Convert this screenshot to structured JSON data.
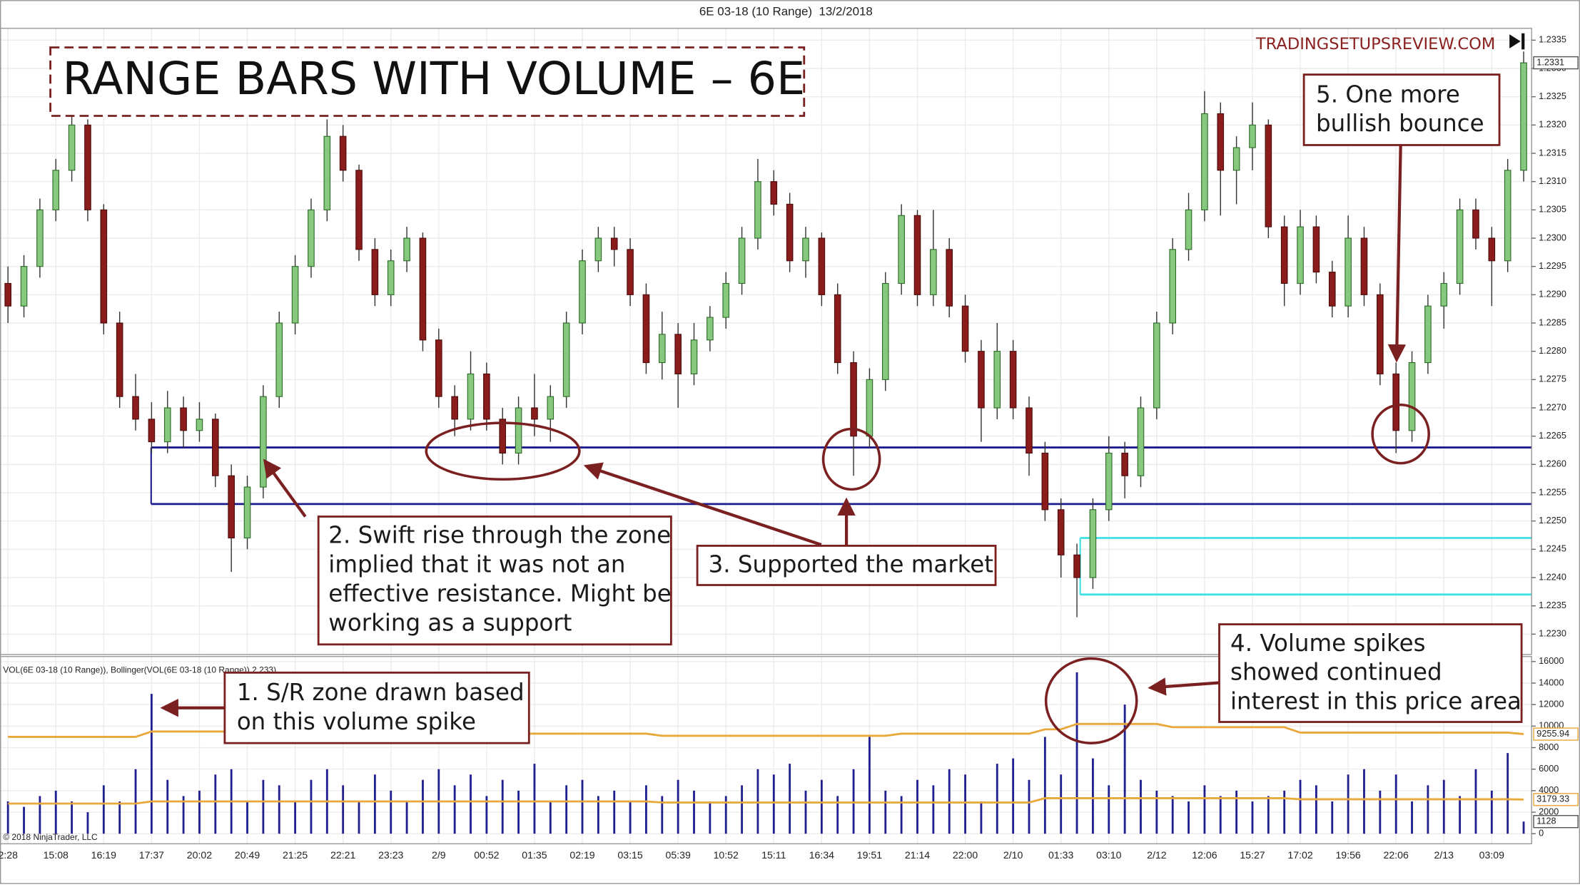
{
  "chart_data": {
    "type": "candlestick",
    "header": "6E 03-18 (10 Range)  13/2/2018",
    "title": "RANGE BARS WITH VOLUME – 6E",
    "watermark": "TRADINGSETUPSREVIEW.COM",
    "copyright": "© 2018 NinjaTrader, LLC",
    "up_color": "#86c97e",
    "down_color": "#8b1c1c",
    "grid": true,
    "categories": [
      "2:28",
      null,
      null,
      "15:08",
      null,
      null,
      "16:19",
      null,
      null,
      "17:37",
      null,
      null,
      "20:02",
      null,
      null,
      "20:49",
      null,
      null,
      "21:25",
      null,
      null,
      "22:21",
      null,
      null,
      "23:23",
      null,
      null,
      "2/9",
      null,
      null,
      "00:52",
      null,
      null,
      "01:35",
      null,
      null,
      "02:19",
      null,
      null,
      "03:15",
      null,
      null,
      "05:39",
      null,
      null,
      "10:52",
      null,
      null,
      "15:11",
      null,
      null,
      "16:34",
      null,
      null,
      "19:51",
      null,
      null,
      "21:14",
      null,
      null,
      "22:00",
      null,
      null,
      "2/10",
      null,
      null,
      "01:33",
      null,
      null,
      "03:10",
      null,
      null,
      "2/12",
      null,
      null,
      "12:06",
      null,
      null,
      "15:27",
      null,
      null,
      "17:02",
      null,
      null,
      "19:56",
      null,
      null,
      "22:06",
      null,
      null,
      "2/13",
      null,
      null,
      "03:09",
      null,
      null
    ],
    "candles": [
      [
        1.2292,
        1.2295,
        1.2285,
        1.2288
      ],
      [
        1.2288,
        1.2297,
        1.2286,
        1.2295
      ],
      [
        1.2295,
        1.2307,
        1.2293,
        1.2305
      ],
      [
        1.2305,
        1.2314,
        1.2303,
        1.2312
      ],
      [
        1.2312,
        1.2322,
        1.231,
        1.232
      ],
      [
        1.232,
        1.2321,
        1.2303,
        1.2305
      ],
      [
        1.2305,
        1.2306,
        1.2283,
        1.2285
      ],
      [
        1.2285,
        1.2287,
        1.227,
        1.2272
      ],
      [
        1.2272,
        1.2276,
        1.2266,
        1.2268
      ],
      [
        1.2268,
        1.2271,
        1.2262,
        1.2264
      ],
      [
        1.2264,
        1.2273,
        1.2262,
        1.227
      ],
      [
        1.227,
        1.2272,
        1.2263,
        1.2266
      ],
      [
        1.2266,
        1.2271,
        1.2264,
        1.2268
      ],
      [
        1.2268,
        1.2269,
        1.2256,
        1.2258
      ],
      [
        1.2258,
        1.226,
        1.2241,
        1.2247
      ],
      [
        1.2247,
        1.2258,
        1.2245,
        1.2256
      ],
      [
        1.2256,
        1.2274,
        1.2254,
        1.2272
      ],
      [
        1.2272,
        1.2287,
        1.227,
        1.2285
      ],
      [
        1.2285,
        1.2297,
        1.2283,
        1.2295
      ],
      [
        1.2295,
        1.2307,
        1.2293,
        1.2305
      ],
      [
        1.2305,
        1.2321,
        1.2303,
        1.2318
      ],
      [
        1.2318,
        1.232,
        1.231,
        1.2312
      ],
      [
        1.2312,
        1.2313,
        1.2296,
        1.2298
      ],
      [
        1.2298,
        1.23,
        1.2288,
        1.229
      ],
      [
        1.229,
        1.2298,
        1.2288,
        1.2296
      ],
      [
        1.2296,
        1.2302,
        1.2294,
        1.23
      ],
      [
        1.23,
        1.2301,
        1.228,
        1.2282
      ],
      [
        1.2282,
        1.2284,
        1.227,
        1.2272
      ],
      [
        1.2272,
        1.2274,
        1.2265,
        1.2268
      ],
      [
        1.2268,
        1.228,
        1.2266,
        1.2276
      ],
      [
        1.2276,
        1.2278,
        1.2266,
        1.2268
      ],
      [
        1.2268,
        1.227,
        1.226,
        1.2262
      ],
      [
        1.2262,
        1.2272,
        1.226,
        1.227
      ],
      [
        1.227,
        1.2276,
        1.2265,
        1.2268
      ],
      [
        1.2268,
        1.2274,
        1.2264,
        1.2272
      ],
      [
        1.2272,
        1.2287,
        1.227,
        1.2285
      ],
      [
        1.2285,
        1.2298,
        1.2283,
        1.2296
      ],
      [
        1.2296,
        1.2302,
        1.2294,
        1.23
      ],
      [
        1.23,
        1.2302,
        1.2295,
        1.2298
      ],
      [
        1.2298,
        1.23,
        1.2288,
        1.229
      ],
      [
        1.229,
        1.2292,
        1.2276,
        1.2278
      ],
      [
        1.2278,
        1.2287,
        1.2275,
        1.2283
      ],
      [
        1.2283,
        1.2285,
        1.227,
        1.2276
      ],
      [
        1.2276,
        1.2285,
        1.2274,
        1.2282
      ],
      [
        1.2282,
        1.2288,
        1.228,
        1.2286
      ],
      [
        1.2286,
        1.2294,
        1.2284,
        1.2292
      ],
      [
        1.2292,
        1.2302,
        1.229,
        1.23
      ],
      [
        1.23,
        1.2314,
        1.2298,
        1.231
      ],
      [
        1.231,
        1.2312,
        1.2304,
        1.2306
      ],
      [
        1.2306,
        1.2308,
        1.2294,
        1.2296
      ],
      [
        1.2296,
        1.2302,
        1.2293,
        1.23
      ],
      [
        1.23,
        1.2301,
        1.2288,
        1.229
      ],
      [
        1.229,
        1.2292,
        1.2276,
        1.2278
      ],
      [
        1.2278,
        1.228,
        1.2258,
        1.2265
      ],
      [
        1.2265,
        1.2277,
        1.2263,
        1.2275
      ],
      [
        1.2275,
        1.2294,
        1.2273,
        1.2292
      ],
      [
        1.2292,
        1.2306,
        1.229,
        1.2304
      ],
      [
        1.2304,
        1.2305,
        1.2288,
        1.229
      ],
      [
        1.229,
        1.2305,
        1.2288,
        1.2298
      ],
      [
        1.2298,
        1.23,
        1.2286,
        1.2288
      ],
      [
        1.2288,
        1.229,
        1.2278,
        1.228
      ],
      [
        1.228,
        1.2282,
        1.2264,
        1.227
      ],
      [
        1.227,
        1.2285,
        1.2268,
        1.228
      ],
      [
        1.228,
        1.2282,
        1.2268,
        1.227
      ],
      [
        1.227,
        1.2272,
        1.2258,
        1.2262
      ],
      [
        1.2262,
        1.2264,
        1.225,
        1.2252
      ],
      [
        1.2252,
        1.2254,
        1.224,
        1.2244
      ],
      [
        1.2244,
        1.2246,
        1.2233,
        1.224
      ],
      [
        1.224,
        1.2254,
        1.2238,
        1.2252
      ],
      [
        1.2252,
        1.2265,
        1.225,
        1.2262
      ],
      [
        1.2262,
        1.2264,
        1.2254,
        1.2258
      ],
      [
        1.2258,
        1.2272,
        1.2256,
        1.227
      ],
      [
        1.227,
        1.2287,
        1.2268,
        1.2285
      ],
      [
        1.2285,
        1.23,
        1.2283,
        1.2298
      ],
      [
        1.2298,
        1.2308,
        1.2296,
        1.2305
      ],
      [
        1.2305,
        1.2326,
        1.2303,
        1.2322
      ],
      [
        1.2322,
        1.2324,
        1.2304,
        1.2312
      ],
      [
        1.2312,
        1.2318,
        1.2306,
        1.2316
      ],
      [
        1.2316,
        1.2324,
        1.2312,
        1.232
      ],
      [
        1.232,
        1.2321,
        1.23,
        1.2302
      ],
      [
        1.2302,
        1.2304,
        1.2288,
        1.2292
      ],
      [
        1.2292,
        1.2305,
        1.229,
        1.2302
      ],
      [
        1.2302,
        1.2304,
        1.2292,
        1.2294
      ],
      [
        1.2294,
        1.2296,
        1.2286,
        1.2288
      ],
      [
        1.2288,
        1.2304,
        1.2286,
        1.23
      ],
      [
        1.23,
        1.2302,
        1.2288,
        1.229
      ],
      [
        1.229,
        1.2292,
        1.2274,
        1.2276
      ],
      [
        1.2276,
        1.2278,
        1.2262,
        1.2266
      ],
      [
        1.2266,
        1.228,
        1.2264,
        1.2278
      ],
      [
        1.2278,
        1.229,
        1.2276,
        1.2288
      ],
      [
        1.2288,
        1.2294,
        1.2284,
        1.2292
      ],
      [
        1.2292,
        1.2307,
        1.229,
        1.2305
      ],
      [
        1.2305,
        1.2307,
        1.2298,
        1.23
      ],
      [
        1.23,
        1.2302,
        1.2288,
        1.2296
      ],
      [
        1.2296,
        1.2314,
        1.2294,
        1.2312
      ],
      [
        1.2312,
        1.2333,
        1.231,
        1.2331
      ]
    ],
    "ylim": [
      1.22264,
      1.23371
    ],
    "yticks": [
      {
        "value": 1.223,
        "label": "1.2230"
      },
      1.2235,
      {
        "value": 1.224,
        "label": "1.2240"
      },
      1.2245,
      {
        "value": 1.225,
        "label": "1.2250"
      },
      1.2255,
      {
        "value": 1.226,
        "label": "1.2260"
      },
      1.2265,
      {
        "value": 1.227,
        "label": "1.2270"
      },
      1.2275,
      {
        "value": 1.228,
        "label": "1.2280"
      },
      1.2285,
      {
        "value": 1.229,
        "label": "1.2290"
      },
      1.2295,
      {
        "value": 1.23,
        "label": "1.2300"
      },
      1.2305,
      {
        "value": 1.231,
        "label": "1.2310"
      },
      1.2315,
      {
        "value": 1.232,
        "label": "1.2320"
      },
      1.2325,
      {
        "value": 1.233,
        "label": "1.2330"
      },
      1.2335
    ],
    "levels": [
      {
        "value": 1.2263,
        "color": "#1c1c8c"
      },
      {
        "value": 1.2253,
        "color": "#1c1c8c"
      },
      {
        "value": 1.2247,
        "color": "#3fe0e6"
      },
      {
        "value": 1.2237,
        "color": "#3fe0e6"
      }
    ],
    "volume": {
      "label": "VOL(6E 03-18 (10 Range)), Bollinger(VOL(6E 03-18 (10 Range)),2,233)",
      "color": "#1f1f8f",
      "values": [
        3000,
        2500,
        3500,
        4000,
        3000,
        2000,
        4500,
        3000,
        6000,
        13000,
        5000,
        3500,
        4000,
        5500,
        6000,
        3000,
        5000,
        4500,
        3000,
        5000,
        6000,
        4500,
        3000,
        5500,
        4000,
        3000,
        5000,
        6000,
        4500,
        5500,
        3500,
        5000,
        4000,
        6500,
        3000,
        4500,
        5000,
        3500,
        4000,
        3000,
        4500,
        3500,
        5000,
        4000,
        3000,
        3500,
        4500,
        6000,
        5500,
        6500,
        4000,
        5000,
        3500,
        6000,
        9000,
        4000,
        3500,
        5000,
        4500,
        6000,
        5500,
        3000,
        6500,
        7000,
        5000,
        9000,
        5500,
        15000,
        7000,
        4500,
        12000,
        5000,
        4000,
        3500,
        3000,
        4500,
        3500,
        4000,
        3000,
        3500,
        4000,
        5000,
        4500,
        3000,
        5500,
        6000,
        4000,
        5500,
        3000,
        4500,
        5000,
        3500,
        6000,
        4000,
        7500,
        1128
      ],
      "ylim": [
        -936,
        16468
      ],
      "yticks": [
        0,
        2000,
        4000,
        6000,
        8000,
        10000,
        12000,
        14000,
        16000
      ],
      "bands": [
        {
          "color": "#e8a83a",
          "values": [
            9000,
            9000,
            9000,
            9000,
            9000,
            9000,
            9000,
            9000,
            9000,
            9500,
            9500,
            9500,
            9500,
            9500,
            9500,
            9500,
            9500,
            9500,
            9500,
            9500,
            9500,
            9300,
            9300,
            9300,
            9300,
            9300,
            9300,
            9300,
            9300,
            9300,
            9300,
            9300,
            9300,
            9300,
            9300,
            9300,
            9300,
            9300,
            9300,
            9300,
            9300,
            9100,
            9100,
            9100,
            9100,
            9100,
            9100,
            9100,
            9100,
            9100,
            9100,
            9100,
            9100,
            9100,
            9100,
            9100,
            9300,
            9300,
            9300,
            9300,
            9300,
            9300,
            9300,
            9300,
            9300,
            9700,
            9700,
            10200,
            10200,
            10200,
            10200,
            10200,
            10200,
            9900,
            9900,
            9900,
            9900,
            9900,
            9900,
            9900,
            9900,
            9400,
            9400,
            9400,
            9400,
            9400,
            9400,
            9400,
            9400,
            9400,
            9400,
            9400,
            9400,
            9400,
            9400,
            9255.94
          ]
        },
        {
          "color": "#e8a83a",
          "values": [
            2800,
            2800,
            2800,
            2800,
            2800,
            2800,
            2800,
            2800,
            2800,
            3000,
            3000,
            3000,
            3000,
            3000,
            3000,
            3000,
            3000,
            3000,
            3000,
            3000,
            3000,
            3000,
            3000,
            3000,
            3000,
            3000,
            3000,
            3000,
            3000,
            3000,
            3000,
            3000,
            3000,
            3000,
            3000,
            3000,
            3000,
            3000,
            3000,
            3000,
            3000,
            2900,
            2900,
            2900,
            2900,
            2900,
            2900,
            2900,
            2900,
            2900,
            2900,
            2900,
            2900,
            2900,
            2900,
            2900,
            2900,
            2900,
            2900,
            2900,
            2900,
            2900,
            2900,
            2900,
            2900,
            3300,
            3300,
            3300,
            3300,
            3300,
            3300,
            3300,
            3300,
            3300,
            3300,
            3300,
            3300,
            3300,
            3300,
            3300,
            3300,
            3200,
            3200,
            3200,
            3200,
            3200,
            3200,
            3200,
            3200,
            3200,
            3200,
            3200,
            3200,
            3200,
            3200,
            3179.33
          ]
        }
      ]
    },
    "annotations": [
      {
        "lines": [
          "1. S/R zone drawn based",
          "on this volume spike"
        ]
      },
      {
        "lines": [
          "2. Swift rise through the zone",
          "implied that it was not an",
          "effective resistance. Might be",
          "working as a support"
        ]
      },
      {
        "lines": [
          "3. Supported the market"
        ]
      },
      {
        "lines": [
          "4. Volume spikes",
          "showed continued",
          "interest in this price area"
        ]
      },
      {
        "lines": [
          "5. One more",
          "bullish bounce"
        ]
      }
    ]
  }
}
